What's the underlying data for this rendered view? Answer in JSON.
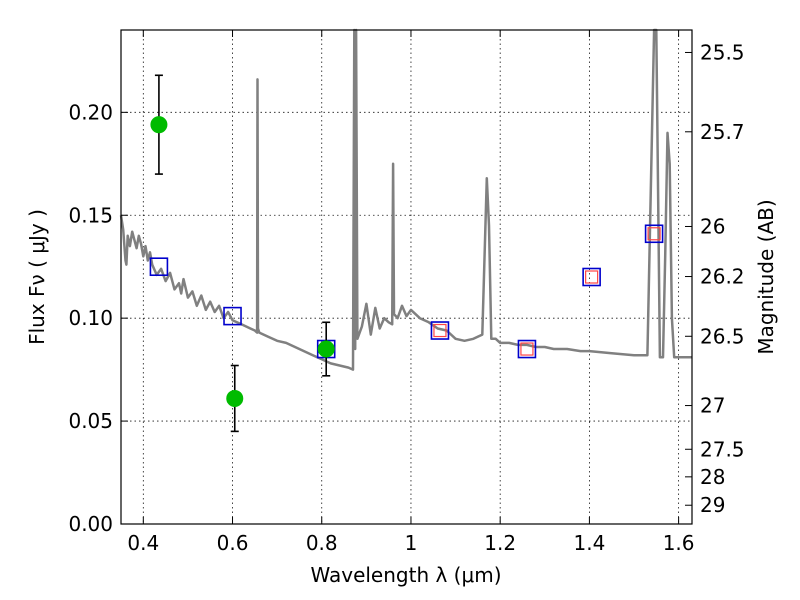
{
  "chart_data": {
    "type": "scatter",
    "xlabel": "Wavelength  λ (μm)",
    "ylabel": "Flux  Fν  ( μJy )",
    "y2label": "Magnitude (AB)",
    "xlim": [
      0.35,
      1.63
    ],
    "ylim": [
      0.0,
      0.24
    ],
    "x_ticks": [
      0.4,
      0.6,
      0.8,
      1.0,
      1.2,
      1.4,
      1.6
    ],
    "x_tick_labels": [
      "0.4",
      "0.6",
      "0.8",
      "1",
      "1.2",
      "1.4",
      "1.6"
    ],
    "y_ticks": [
      0.0,
      0.05,
      0.1,
      0.15,
      0.2
    ],
    "y_tick_labels": [
      "0.00",
      "0.05",
      "0.10",
      "0.15",
      "0.20"
    ],
    "mag_ticks": [
      25.5,
      25.7,
      26,
      26.2,
      26.5,
      27,
      27.5,
      28,
      29
    ],
    "mag_tick_labels": [
      "25.5",
      "25.7",
      "26",
      "26.2",
      "26.5",
      "27",
      "27.5",
      "28",
      "29"
    ],
    "grid": true,
    "colors": {
      "model": "#808080",
      "observed": "#00bb00",
      "model_band_outer": "#0000cc",
      "model_band_inner": "#ff4444",
      "errorbar": "#000000"
    },
    "series": [
      {
        "kind": "line",
        "x": [
          0.35,
          0.355,
          0.36,
          0.362,
          0.365,
          0.37,
          0.375,
          0.38,
          0.385,
          0.39,
          0.395,
          0.4,
          0.405,
          0.41,
          0.415,
          0.42,
          0.43,
          0.44,
          0.45,
          0.46,
          0.47,
          0.48,
          0.485,
          0.49,
          0.5,
          0.51,
          0.52,
          0.53,
          0.54,
          0.55,
          0.56,
          0.57,
          0.58,
          0.59,
          0.6,
          0.62,
          0.64,
          0.65,
          0.655,
          0.656,
          0.657,
          0.66,
          0.68,
          0.7,
          0.72,
          0.74,
          0.76,
          0.78,
          0.8,
          0.82,
          0.84,
          0.86,
          0.87,
          0.873,
          0.875,
          0.877,
          0.88,
          0.89,
          0.9,
          0.91,
          0.92,
          0.93,
          0.94,
          0.95,
          0.958,
          0.96,
          0.962,
          0.97,
          0.98,
          0.99,
          1.0,
          1.02,
          1.04,
          1.06,
          1.08,
          1.1,
          1.12,
          1.14,
          1.16,
          1.17,
          1.175,
          1.18,
          1.19,
          1.2,
          1.22,
          1.24,
          1.26,
          1.28,
          1.3,
          1.32,
          1.35,
          1.38,
          1.4,
          1.45,
          1.5,
          1.53,
          1.545,
          1.55,
          1.558,
          1.565,
          1.57,
          1.575,
          1.58,
          1.585,
          1.59,
          1.595,
          1.6,
          1.63
        ],
        "y": [
          0.15,
          0.143,
          0.128,
          0.126,
          0.14,
          0.135,
          0.142,
          0.138,
          0.134,
          0.14,
          0.136,
          0.13,
          0.135,
          0.128,
          0.132,
          0.126,
          0.121,
          0.124,
          0.118,
          0.122,
          0.114,
          0.117,
          0.112,
          0.119,
          0.11,
          0.113,
          0.106,
          0.111,
          0.104,
          0.108,
          0.103,
          0.106,
          0.1,
          0.103,
          0.099,
          0.097,
          0.095,
          0.094,
          0.093,
          0.216,
          0.095,
          0.093,
          0.091,
          0.089,
          0.088,
          0.086,
          0.084,
          0.082,
          0.08,
          0.078,
          0.077,
          0.076,
          0.075,
          0.24,
          0.085,
          0.24,
          0.09,
          0.096,
          0.107,
          0.092,
          0.105,
          0.095,
          0.1,
          0.098,
          0.097,
          0.175,
          0.102,
          0.1,
          0.106,
          0.101,
          0.104,
          0.1,
          0.098,
          0.095,
          0.094,
          0.09,
          0.089,
          0.09,
          0.092,
          0.168,
          0.145,
          0.09,
          0.09,
          0.088,
          0.088,
          0.087,
          0.087,
          0.086,
          0.086,
          0.085,
          0.085,
          0.084,
          0.084,
          0.083,
          0.082,
          0.082,
          0.24,
          0.24,
          0.081,
          0.081,
          0.13,
          0.19,
          0.175,
          0.1,
          0.081,
          0.081,
          0.081,
          0.081
        ]
      },
      {
        "kind": "scatter",
        "x": [
          0.435,
          0.605,
          0.81
        ],
        "y": [
          0.194,
          0.061,
          0.085
        ],
        "yerr": [
          0.024,
          0.016,
          0.013
        ]
      },
      {
        "kind": "scatter",
        "x": [
          0.435,
          0.6,
          0.81,
          1.065,
          1.26,
          1.405,
          1.545
        ],
        "y": [
          0.125,
          0.101,
          0.085,
          0.094,
          0.085,
          0.12,
          0.141
        ]
      },
      {
        "kind": "scatter",
        "x": [
          1.065,
          1.26,
          1.405,
          1.545
        ],
        "y": [
          0.094,
          0.085,
          0.12,
          0.141
        ]
      }
    ]
  }
}
